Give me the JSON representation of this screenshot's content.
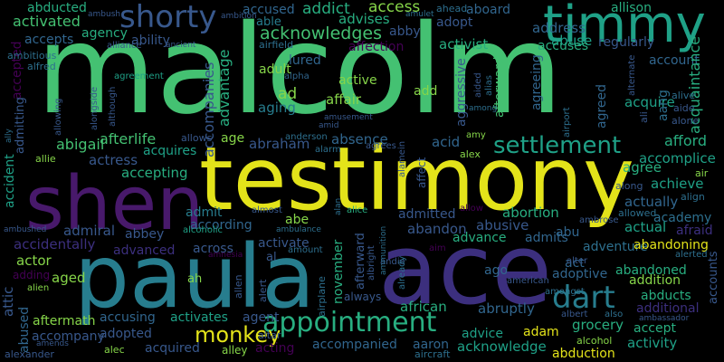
{
  "words": {
    "malcolm": "malcolm",
    "testimony": "testimony",
    "ace": "ace",
    "paula": "paula",
    "shen": "shen",
    "timmy": "timmy",
    "appointment": "appointment",
    "shorty": "shorty",
    "settlement": "settlement",
    "dart": "dart",
    "monkey": "monkey",
    "acknowledges": "acknowledges",
    "activated": "activated",
    "abducted": "abducted",
    "accused": "accused",
    "addict": "addict",
    "access": "access",
    "allison": "allison",
    "abuse": "abuse",
    "accepts": "accepts",
    "agency": "agency",
    "able": "able",
    "advises": "advises",
    "abby": "abby",
    "adopt": "adopt",
    "aboard": "aboard",
    "ahead": "ahead",
    "amulet": "amulet",
    "address": "address",
    "ability": "ability",
    "activist": "activist",
    "accuses": "accuses",
    "regularly": "regularly",
    "affection": "affection",
    "accompanies": "accompanies",
    "advantage": "advantage",
    "lured": "lured",
    "adult": "adult",
    "alpha": "alpha",
    "active": "active",
    "affair": "affair",
    "aging": "aging",
    "ad": "ad",
    "add": "add",
    "acquire": "acquire",
    "account": "account",
    "acquaintance": "acquaintance",
    "aggressive": "aggressive",
    "afterwards": "afterwards",
    "agreeing": "agreeing",
    "agreed": "agreed",
    "aang": "aang",
    "alive": "alive",
    "aide": "aide",
    "alone": "alone",
    "abigail": "abigail",
    "afterlife": "afterlife",
    "age": "age",
    "abraham": "abraham",
    "absence": "absence",
    "acid": "acid",
    "afford": "afford",
    "accomplice": "accomplice",
    "actress": "actress",
    "acquires": "acquires",
    "agree": "agree",
    "accepting": "accepting",
    "achieve": "achieve",
    "actually": "actually",
    "align": "align",
    "admit": "admit",
    "abe": "abe",
    "admitted": "admitted",
    "abortion": "abortion",
    "academy": "academy",
    "admiral": "admiral",
    "abbey": "abbey",
    "according": "according",
    "abusive": "abusive",
    "actual": "actual",
    "allowed": "allowed",
    "afraid": "afraid",
    "accidentally": "accidentally",
    "advanced": "advanced",
    "activate": "activate",
    "abandon": "abandon",
    "advance": "advance",
    "admits": "admits",
    "abu": "abu",
    "adventure": "adventure",
    "abandoning": "abandoning",
    "actor": "actor",
    "across": "across",
    "november": "november",
    "act": "act",
    "adoptive": "adoptive",
    "abandoned": "abandoned",
    "addition": "addition",
    "abducts": "abducts",
    "additional": "additional",
    "aged": "aged",
    "ago": "ago",
    "alien": "alien",
    "accusing": "accusing",
    "activates": "activates",
    "agent": "agent",
    "african": "african",
    "abruptly": "abruptly",
    "aftermath": "aftermath",
    "accompany": "accompany",
    "adopted": "adopted",
    "advice": "advice",
    "adam": "adam",
    "grocery": "grocery",
    "accept": "accept",
    "acquired": "acquired",
    "acting": "acting",
    "accompanied": "accompanied",
    "aaron": "aaron",
    "acknowledge": "acknowledge",
    "activity": "activity",
    "abduction": "abduction",
    "alley": "alley",
    "alec": "alec",
    "alexander": "alexander",
    "aircraft": "aircraft",
    "alcohol": "alcohol",
    "attic": "attic",
    "abused": "abused",
    "accepted": "accepted",
    "admitting": "admitting",
    "accident": "accident",
    "adding": "adding",
    "airfield": "airfield",
    "alliance": "alliance",
    "ambitious": "ambitious",
    "alfred": "alfred",
    "ally": "ally",
    "agreement": "agreement",
    "allowing": "allowing",
    "alongside": "alongside",
    "although": "although",
    "allows": "allows",
    "anderson": "anderson",
    "amy": "amy",
    "alex": "alex",
    "agrees": "agrees",
    "affect": "affect",
    "alarm": "alarm",
    "alamein": "alamein",
    "allie": "allie",
    "along": "along",
    "air": "air",
    "alcoholic": "alcoholic",
    "almost": "almost",
    "alice": "alice",
    "allow": "allow",
    "ambrose": "ambrose",
    "alerted": "alerted",
    "afterward": "afterward",
    "airplane": "airplane",
    "albright": "albright",
    "andie": "andie",
    "already": "already",
    "always": "always",
    "american": "american",
    "amongst": "amongst",
    "albert": "albert",
    "also": "also",
    "ambassador": "ambassador",
    "amends": "amends",
    "altar": "altar",
    "ammunition": "ammunition",
    "aim": "aim",
    "amount": "amount",
    "alter": "alter",
    "ambushed": "ambushed",
    "ambulance": "ambulance",
    "amnesia": "amnesia",
    "alert": "alert",
    "allen": "allen",
    "ah": "ah",
    "al": "al",
    "alan": "alan",
    "alternate": "alternate",
    "ali": "ali",
    "among": "among",
    "airport": "airport",
    "aided": "aided",
    "alias": "alias",
    "amusement": "amusement",
    "amid": "amid",
    "ambush": "ambush",
    "ambition": "ambition",
    "ancient": "ancient",
    "accounts": "accounts"
  }
}
